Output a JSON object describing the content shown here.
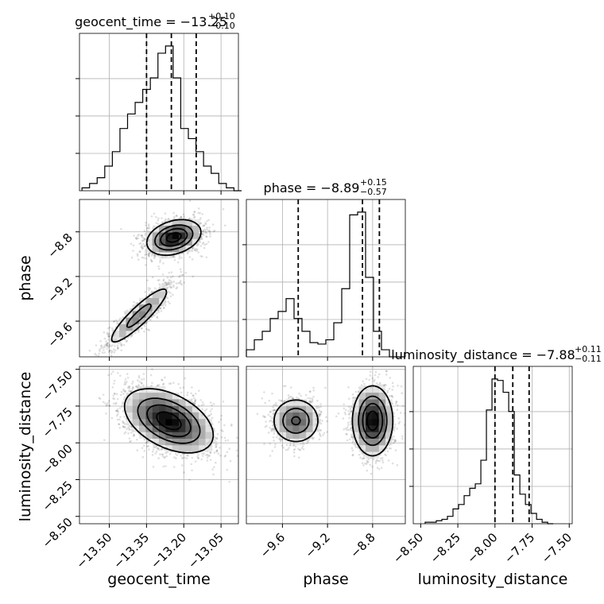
{
  "chart_data": {
    "type": "corner",
    "parameters": [
      {
        "name": "geocent_time",
        "axis_label": "geocent_time",
        "title": "geocent_time = −13.25",
        "title_plus": "+0.10",
        "title_minus": "−0.10",
        "range": [
          -13.62,
          -12.98
        ],
        "ticks": [
          -13.5,
          -13.35,
          -13.2,
          -13.05
        ],
        "tick_labels": [
          "−13.50",
          "−13.35",
          "−13.20",
          "−13.05"
        ],
        "quantiles": [
          -13.35,
          -13.25,
          -13.15
        ],
        "hist_edges_start": -13.61,
        "hist_bin_width": 0.0306,
        "hist_heights": [
          0.02,
          0.05,
          0.09,
          0.17,
          0.27,
          0.43,
          0.53,
          0.61,
          0.7,
          0.78,
          0.95,
          1.0,
          0.78,
          0.43,
          0.36,
          0.27,
          0.17,
          0.12,
          0.05,
          0.02,
          0.0
        ]
      },
      {
        "name": "phase",
        "axis_label": "phase",
        "title": "phase = −8.89",
        "title_plus": "+0.15",
        "title_minus": "−0.57",
        "range": [
          -9.92,
          -8.51
        ],
        "ticks": [
          -9.6,
          -9.2,
          -8.8
        ],
        "tick_labels": [
          "−9.6",
          "−9.2",
          "−8.8"
        ],
        "quantiles": [
          -9.46,
          -8.89,
          -8.74
        ],
        "hist_edges_start": -9.92,
        "hist_bin_width": 0.0705,
        "hist_heights": [
          0.05,
          0.12,
          0.18,
          0.27,
          0.32,
          0.41,
          0.27,
          0.18,
          0.1,
          0.09,
          0.12,
          0.24,
          0.48,
          1.0,
          1.02,
          0.56,
          0.18,
          0.05,
          0.0,
          0.0
        ]
      },
      {
        "name": "luminosity_distance",
        "axis_label": "luminosity_distance",
        "title": "luminosity_distance = −7.88",
        "title_plus": "+0.11",
        "title_minus": "−0.11",
        "range": [
          -8.55,
          -7.48
        ],
        "ticks": [
          -8.5,
          -8.25,
          -8.0,
          -7.75,
          -7.5
        ],
        "tick_labels": [
          "−8.50",
          "−8.25",
          "−8.00",
          "−7.75",
          "−7.50"
        ],
        "quantiles": [
          -8.0,
          -7.88,
          -7.77
        ],
        "hist_edges_start": -8.47,
        "hist_bin_width": 0.0375,
        "hist_heights": [
          0.01,
          0.01,
          0.02,
          0.03,
          0.05,
          0.1,
          0.13,
          0.19,
          0.24,
          0.27,
          0.43,
          0.77,
          0.98,
          0.97,
          0.89,
          0.76,
          0.33,
          0.2,
          0.13,
          0.07,
          0.03,
          0.01,
          0.0
        ]
      }
    ],
    "modes_2d": {
      "geocent_time_vs_phase": [
        {
          "center": [
            -13.24,
            -8.85
          ],
          "spread": [
            0.055,
            0.08
          ],
          "corr": 0.3,
          "weight": 0.65
        },
        {
          "center": [
            -13.38,
            -9.55
          ],
          "spread": [
            0.07,
            0.15
          ],
          "corr": 0.9,
          "weight": 0.35
        }
      ],
      "geocent_time_vs_luminosity_distance": [
        {
          "center": [
            -13.26,
            -7.85
          ],
          "spread": [
            0.09,
            0.11
          ],
          "corr": -0.45,
          "weight": 1.0
        }
      ],
      "phase_vs_luminosity_distance": [
        {
          "center": [
            -8.8,
            -7.85
          ],
          "spread": [
            0.09,
            0.12
          ],
          "corr": 0.0,
          "weight": 0.65
        },
        {
          "center": [
            -9.48,
            -7.85
          ],
          "spread": [
            0.11,
            0.08
          ],
          "corr": 0.0,
          "weight": 0.35
        }
      ]
    },
    "grid": true
  }
}
